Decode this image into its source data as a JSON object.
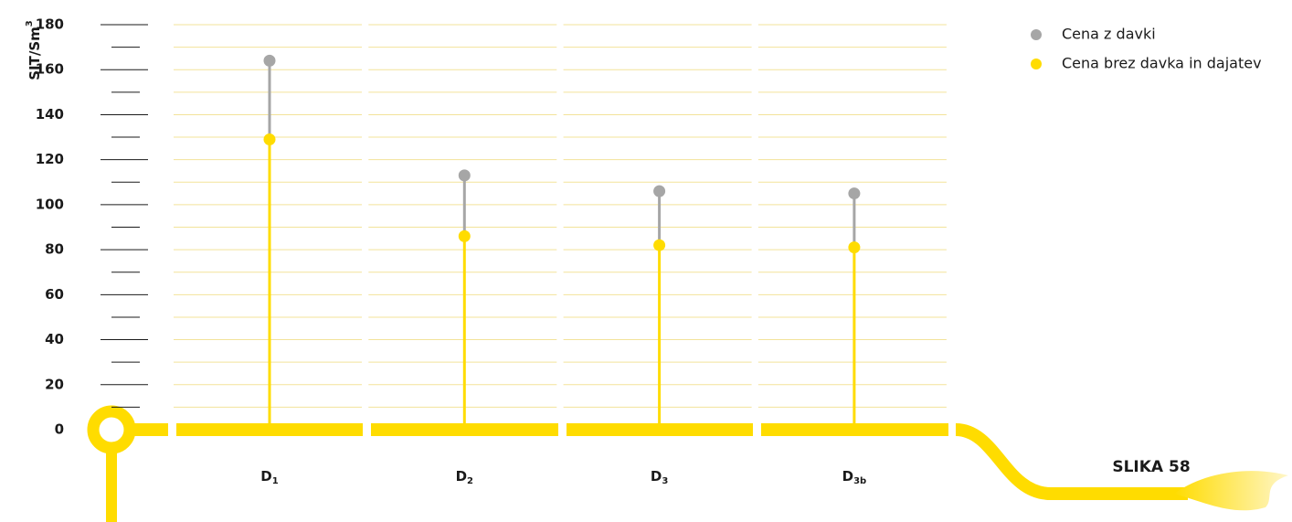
{
  "chart_data": {
    "type": "lollipop",
    "y_label": "SIT/Sm3",
    "categories": [
      "D1",
      "D2",
      "D3",
      "D3b"
    ],
    "series": [
      {
        "name": "Cena z davki",
        "color": "#a6a6a6",
        "values": [
          164,
          113,
          106,
          105
        ]
      },
      {
        "name": "Cena brez davka in dajatev",
        "color": "#ffdc00",
        "values": [
          129,
          86,
          82,
          81
        ]
      }
    ],
    "ylim": [
      0,
      180
    ],
    "yticks": [
      0,
      20,
      40,
      60,
      80,
      100,
      120,
      140,
      160,
      180
    ],
    "grid": true,
    "legend": "top-right",
    "figure_label": "SLIKA 58"
  }
}
